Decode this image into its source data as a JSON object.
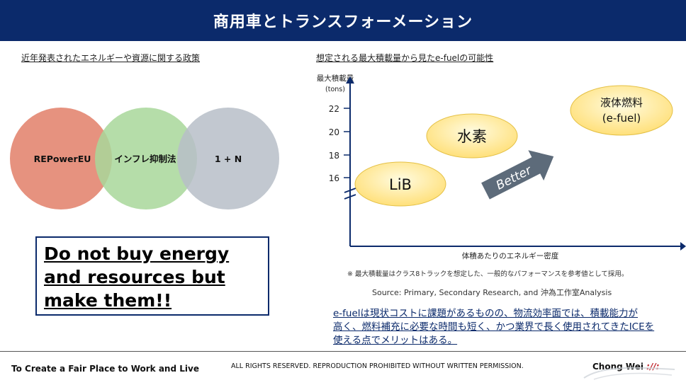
{
  "header": {
    "title": "商用車とトランスフォーメーション"
  },
  "left": {
    "section_label": "近年発表されたエネルギーや資源に関する政策",
    "venn": [
      {
        "label": "REPowerEU",
        "color": "#e6927f"
      },
      {
        "label": "インフレ抑制法",
        "color": "#a8d79a"
      },
      {
        "label": "1 + N",
        "color": "#b7bec8"
      }
    ],
    "claim_lines": [
      "Do not buy energy",
      "and resources but",
      "make them!!"
    ]
  },
  "right": {
    "section_label": "想定される最大積載量から見たe-fuelの可能性",
    "chart": {
      "ylabel": "最大積載量",
      "yunit": "(tons)",
      "xlabel": "体積あたりのエネルギー密度",
      "yticks": [
        "16",
        "18",
        "20",
        "22"
      ],
      "bubbles": [
        {
          "label": "LiB"
        },
        {
          "label": "水素"
        },
        {
          "label": "液体燃料",
          "sublabel": "(e-fuel)"
        }
      ],
      "arrow_label": "Better"
    },
    "note": "※ 最大積載量はクラス8トラックを想定した、一般的なパフォーマンスを参考値として採用。",
    "source": "Source: Primary, Secondary Research, and 沖為工作室Analysis",
    "summary_lines": [
      "e-fuelは現状コストに課題があるものの、物流効率面では、積載能力が",
      "高く、燃料補充に必要な時間も短く、かつ業界で長く使用されてきたICEを",
      "使える点でメリットはある。"
    ]
  },
  "footer": {
    "tagline": "To Create a Fair Place to Work and Live",
    "rights": "ALL RIGHTS RESERVED. REPRODUCTION PROHIBITED WITHOUT WRITTEN PERMISSION.",
    "brand": "Chong Wei",
    "brand_mark": "://:"
  },
  "colors": {
    "navy": "#0b2a6b",
    "bubble_fill": "#ffe88a",
    "arrow": "#5d6b7a"
  }
}
